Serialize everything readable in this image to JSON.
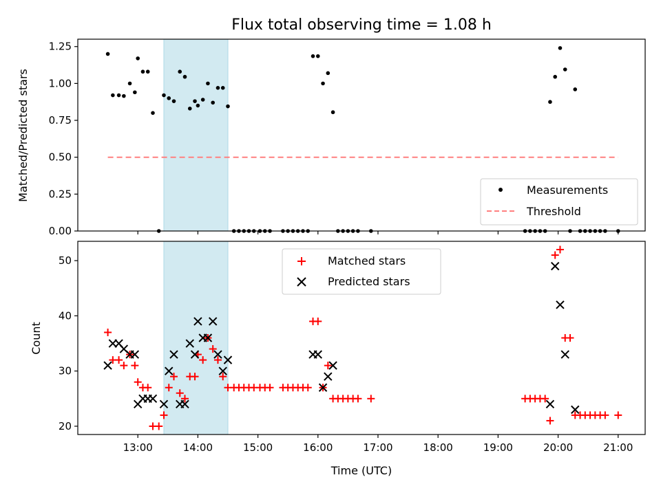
{
  "chart_data": [
    {
      "type": "scatter",
      "title": "Flux total observing time = 1.08 h",
      "xlabel": "",
      "ylabel": "Matched/Predicted stars",
      "ylim": [
        0.0,
        1.3
      ],
      "yticks": [
        "0.00",
        "0.25",
        "0.50",
        "0.75",
        "1.00",
        "1.25"
      ],
      "ytick_values": [
        0.0,
        0.25,
        0.5,
        0.75,
        1.0,
        1.25
      ],
      "shaded_span": {
        "x": [
          "13:26",
          "14:30"
        ],
        "color": "#add8e6"
      },
      "colors": {
        "measurements": "#000000",
        "threshold": "#ff7f7f",
        "span": "#add8e6"
      },
      "legend": {
        "position": "lower-right",
        "entries": [
          "Measurements",
          "Threshold"
        ]
      },
      "series": [
        {
          "name": "Measurements",
          "marker": "dot",
          "points": [
            [
              "12:30",
              1.2
            ],
            [
              "12:35",
              0.92
            ],
            [
              "12:41",
              0.92
            ],
            [
              "12:46",
              0.915
            ],
            [
              "12:52",
              1.0
            ],
            [
              "12:57",
              0.94
            ],
            [
              "13:00",
              1.17
            ],
            [
              "13:05",
              1.08
            ],
            [
              "13:10",
              1.08
            ],
            [
              "13:15",
              0.8
            ],
            [
              "13:21",
              0.0
            ],
            [
              "13:26",
              0.92
            ],
            [
              "13:31",
              0.9
            ],
            [
              "13:36",
              0.88
            ],
            [
              "13:42",
              1.08
            ],
            [
              "13:47",
              1.045
            ],
            [
              "13:52",
              0.83
            ],
            [
              "13:57",
              0.88
            ],
            [
              "14:00",
              0.85
            ],
            [
              "14:05",
              0.89
            ],
            [
              "14:10",
              1.0
            ],
            [
              "14:15",
              0.87
            ],
            [
              "14:20",
              0.97
            ],
            [
              "14:25",
              0.97
            ],
            [
              "14:30",
              0.845
            ],
            [
              "14:36",
              0.0
            ],
            [
              "14:41",
              0.0
            ],
            [
              "14:46",
              0.0
            ],
            [
              "14:51",
              0.0
            ],
            [
              "14:56",
              0.0
            ],
            [
              "15:02",
              0.0
            ],
            [
              "15:07",
              0.0
            ],
            [
              "15:12",
              0.0
            ],
            [
              "15:25",
              0.0
            ],
            [
              "15:30",
              0.0
            ],
            [
              "15:35",
              0.0
            ],
            [
              "15:40",
              0.0
            ],
            [
              "15:45",
              0.0
            ],
            [
              "15:50",
              0.0
            ],
            [
              "15:55",
              1.185
            ],
            [
              "16:00",
              1.185
            ],
            [
              "16:05",
              1.0
            ],
            [
              "16:10",
              1.07
            ],
            [
              "16:15",
              0.805
            ],
            [
              "16:20",
              0.0
            ],
            [
              "16:25",
              0.0
            ],
            [
              "16:30",
              0.0
            ],
            [
              "16:35",
              0.0
            ],
            [
              "16:40",
              0.0
            ],
            [
              "16:53",
              0.0
            ],
            [
              "19:27",
              0.0
            ],
            [
              "19:32",
              0.0
            ],
            [
              "19:37",
              0.0
            ],
            [
              "19:42",
              0.0
            ],
            [
              "19:47",
              0.0
            ],
            [
              "19:52",
              0.875
            ],
            [
              "19:57",
              1.045
            ],
            [
              "20:02",
              1.24
            ],
            [
              "20:07",
              1.095
            ],
            [
              "20:12",
              0.0
            ],
            [
              "20:17",
              0.96
            ],
            [
              "20:22",
              0.0
            ],
            [
              "20:27",
              0.0
            ],
            [
              "20:32",
              0.0
            ],
            [
              "20:37",
              0.0
            ],
            [
              "20:42",
              0.0
            ],
            [
              "20:47",
              0.0
            ],
            [
              "21:00",
              0.0
            ]
          ]
        },
        {
          "name": "Threshold",
          "marker": "dashed-line",
          "points": [
            [
              "12:30",
              0.5
            ],
            [
              "21:00",
              0.5
            ]
          ]
        }
      ]
    },
    {
      "type": "scatter",
      "title": "",
      "xlabel": "Time (UTC)",
      "ylabel": "Count",
      "xlim": [
        "12:00",
        "21:27"
      ],
      "xticks": [
        "13:00",
        "14:00",
        "15:00",
        "16:00",
        "17:00",
        "18:00",
        "19:00",
        "20:00",
        "21:00"
      ],
      "ylim": [
        18.5,
        53.5
      ],
      "yticks": [
        "20",
        "30",
        "40",
        "50"
      ],
      "ytick_values": [
        20,
        30,
        40,
        50
      ],
      "shaded_span": {
        "x": [
          "13:26",
          "14:30"
        ],
        "color": "#add8e6"
      },
      "colors": {
        "matched": "#ff0000",
        "predicted": "#000000"
      },
      "legend": {
        "position": "top-center",
        "entries": [
          "Matched stars",
          "Predicted stars"
        ]
      },
      "series": [
        {
          "name": "Matched stars",
          "marker": "plus",
          "points": [
            [
              "12:30",
              37
            ],
            [
              "12:35",
              32
            ],
            [
              "12:41",
              32
            ],
            [
              "12:46",
              31
            ],
            [
              "12:52",
              33
            ],
            [
              "12:57",
              31
            ],
            [
              "13:00",
              28
            ],
            [
              "13:05",
              27
            ],
            [
              "13:10",
              27
            ],
            [
              "13:15",
              20
            ],
            [
              "13:21",
              20
            ],
            [
              "13:26",
              22
            ],
            [
              "13:31",
              27
            ],
            [
              "13:36",
              29
            ],
            [
              "13:42",
              26
            ],
            [
              "13:47",
              25
            ],
            [
              "13:52",
              29
            ],
            [
              "13:57",
              29
            ],
            [
              "14:00",
              33
            ],
            [
              "14:05",
              32
            ],
            [
              "14:10",
              36
            ],
            [
              "14:15",
              34
            ],
            [
              "14:20",
              32
            ],
            [
              "14:25",
              29
            ],
            [
              "14:30",
              27
            ],
            [
              "14:36",
              27
            ],
            [
              "14:41",
              27
            ],
            [
              "14:46",
              27
            ],
            [
              "14:51",
              27
            ],
            [
              "14:56",
              27
            ],
            [
              "15:02",
              27
            ],
            [
              "15:07",
              27
            ],
            [
              "15:12",
              27
            ],
            [
              "15:25",
              27
            ],
            [
              "15:30",
              27
            ],
            [
              "15:35",
              27
            ],
            [
              "15:40",
              27
            ],
            [
              "15:45",
              27
            ],
            [
              "15:50",
              27
            ],
            [
              "15:55",
              39
            ],
            [
              "16:00",
              39
            ],
            [
              "16:05",
              27
            ],
            [
              "16:10",
              31
            ],
            [
              "16:15",
              25
            ],
            [
              "16:20",
              25
            ],
            [
              "16:25",
              25
            ],
            [
              "16:30",
              25
            ],
            [
              "16:35",
              25
            ],
            [
              "16:40",
              25
            ],
            [
              "16:53",
              25
            ],
            [
              "19:27",
              25
            ],
            [
              "19:32",
              25
            ],
            [
              "19:37",
              25
            ],
            [
              "19:42",
              25
            ],
            [
              "19:47",
              25
            ],
            [
              "19:52",
              21
            ],
            [
              "19:57",
              51
            ],
            [
              "20:02",
              52
            ],
            [
              "20:07",
              36
            ],
            [
              "20:12",
              36
            ],
            [
              "20:17",
              22
            ],
            [
              "20:22",
              22
            ],
            [
              "20:27",
              22
            ],
            [
              "20:32",
              22
            ],
            [
              "20:37",
              22
            ],
            [
              "20:42",
              22
            ],
            [
              "20:47",
              22
            ],
            [
              "21:00",
              22
            ]
          ]
        },
        {
          "name": "Predicted stars",
          "marker": "x",
          "points": [
            [
              "12:30",
              31
            ],
            [
              "12:35",
              35
            ],
            [
              "12:41",
              35
            ],
            [
              "12:46",
              34
            ],
            [
              "12:52",
              33
            ],
            [
              "12:57",
              33
            ],
            [
              "13:00",
              24
            ],
            [
              "13:05",
              25
            ],
            [
              "13:10",
              25
            ],
            [
              "13:15",
              25
            ],
            [
              "13:26",
              24
            ],
            [
              "13:31",
              30
            ],
            [
              "13:36",
              33
            ],
            [
              "13:42",
              24
            ],
            [
              "13:47",
              24
            ],
            [
              "13:52",
              35
            ],
            [
              "13:57",
              33
            ],
            [
              "14:00",
              39
            ],
            [
              "14:05",
              36
            ],
            [
              "14:10",
              36
            ],
            [
              "14:15",
              39
            ],
            [
              "14:20",
              33
            ],
            [
              "14:25",
              30
            ],
            [
              "14:30",
              32
            ],
            [
              "15:55",
              33
            ],
            [
              "16:00",
              33
            ],
            [
              "16:05",
              27
            ],
            [
              "16:10",
              29
            ],
            [
              "16:15",
              31
            ],
            [
              "19:52",
              24
            ],
            [
              "19:57",
              49
            ],
            [
              "20:02",
              42
            ],
            [
              "20:07",
              33
            ],
            [
              "20:17",
              23
            ]
          ]
        }
      ]
    }
  ]
}
